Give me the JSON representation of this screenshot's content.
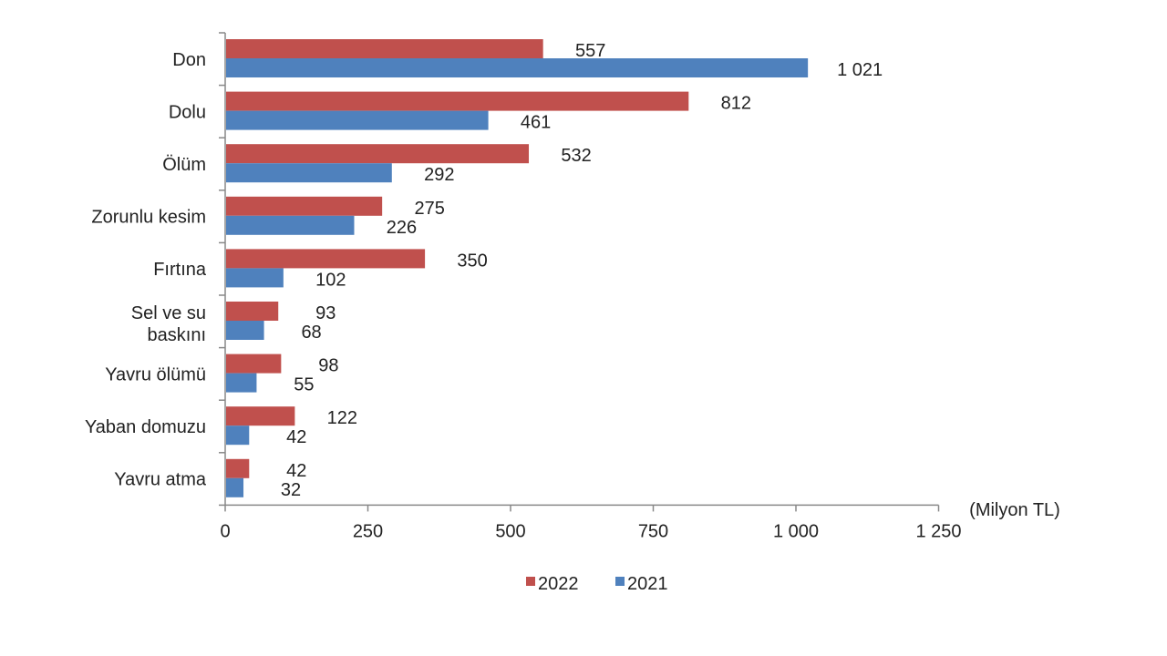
{
  "chart_data": {
    "type": "bar",
    "orientation": "horizontal",
    "categories": [
      "Don",
      "Dolu",
      "Ölüm",
      "Zorunlu kesim",
      "Fırtına",
      "Sel ve su baskını",
      "Yavru ölümü",
      "Yaban domuzu",
      "Yavru atma"
    ],
    "series": [
      {
        "name": "2022",
        "color": "#c0504d",
        "values": [
          557,
          812,
          532,
          275,
          350,
          93,
          98,
          122,
          42
        ],
        "labels": [
          "557",
          "812",
          "532",
          "275",
          "350",
          "93",
          "98",
          "122",
          "42"
        ]
      },
      {
        "name": "2021",
        "color": "#4f81bd",
        "values": [
          1021,
          461,
          292,
          226,
          102,
          68,
          55,
          42,
          32
        ],
        "labels": [
          "1 021",
          "461",
          "292",
          "226",
          "102",
          "68",
          "55",
          "42",
          "32"
        ]
      }
    ],
    "xlim": [
      0,
      1250
    ],
    "xticks": [
      0,
      250,
      500,
      750,
      1000,
      1250
    ],
    "xtick_labels": [
      "0",
      "250",
      "500",
      "750",
      "1 000",
      "1 250"
    ],
    "unit_label": "(Milyon TL)",
    "legend_position": "bottom",
    "grid": false
  }
}
